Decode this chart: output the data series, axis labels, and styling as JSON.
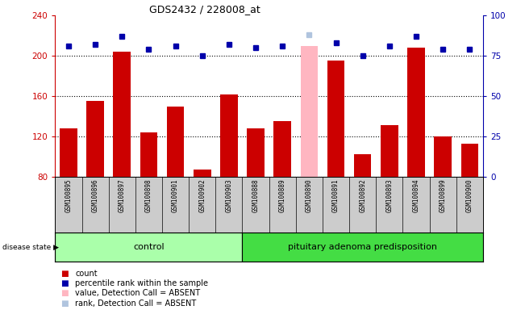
{
  "title": "GDS2432 / 228008_at",
  "samples": [
    "GSM100895",
    "GSM100896",
    "GSM100897",
    "GSM100898",
    "GSM100901",
    "GSM100902",
    "GSM100903",
    "GSM100888",
    "GSM100889",
    "GSM100890",
    "GSM100891",
    "GSM100892",
    "GSM100893",
    "GSM100894",
    "GSM100899",
    "GSM100900"
  ],
  "bar_values": [
    128,
    155,
    204,
    124,
    150,
    87,
    162,
    128,
    135,
    210,
    195,
    102,
    131,
    208,
    120,
    113
  ],
  "absent_bars": [
    9
  ],
  "dot_values": [
    81,
    82,
    87,
    79,
    81,
    75,
    82,
    80,
    81,
    88,
    83,
    75,
    81,
    87,
    79,
    79
  ],
  "absent_dots": [
    9
  ],
  "control_count": 7,
  "ylim_left": [
    80,
    240
  ],
  "ylim_right": [
    0,
    100
  ],
  "yticks_left": [
    80,
    120,
    160,
    200,
    240
  ],
  "yticks_right": [
    0,
    25,
    50,
    75,
    100
  ],
  "bar_color": "#CC0000",
  "bar_absent_color": "#FFB6C1",
  "dot_color": "#0000AA",
  "dot_absent_color": "#B0C4DE",
  "control_bg": "#AAFFAA",
  "pituitary_bg": "#44DD44",
  "label_bg": "#CCCCCC",
  "background_color": "#ffffff",
  "legend_items": [
    {
      "label": "count",
      "color": "#CC0000"
    },
    {
      "label": "percentile rank within the sample",
      "color": "#0000AA"
    },
    {
      "label": "value, Detection Call = ABSENT",
      "color": "#FFB6C1"
    },
    {
      "label": "rank, Detection Call = ABSENT",
      "color": "#B0C4DE"
    }
  ]
}
